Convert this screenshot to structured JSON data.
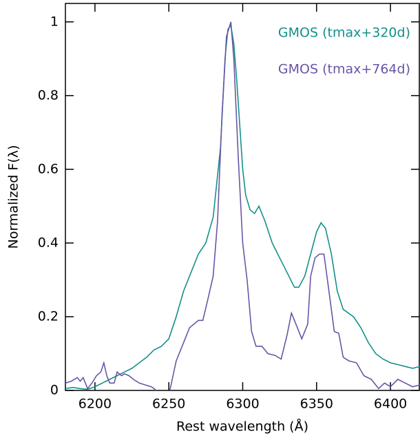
{
  "chart_data": {
    "type": "line",
    "x_label": "Rest wavelength (Å)",
    "y_label": "Normalized F(λ)",
    "xlim": [
      6180,
      6420
    ],
    "xticks": [
      6200,
      6250,
      6300,
      6350,
      6400
    ],
    "ylim": [
      0,
      1.05
    ],
    "yticks": [
      0,
      0.2,
      0.4,
      0.6,
      0.8,
      1
    ],
    "series": [
      {
        "name": "GMOS (tmax+320d)",
        "color": "#12908a",
        "x": [
          6180,
          6185,
          6190,
          6195,
          6200,
          6205,
          6210,
          6215,
          6220,
          6225,
          6230,
          6235,
          6240,
          6245,
          6250,
          6255,
          6260,
          6265,
          6270,
          6275,
          6280,
          6285,
          6288,
          6290,
          6292,
          6294,
          6296,
          6300,
          6302,
          6305,
          6308,
          6311,
          6315,
          6320,
          6325,
          6330,
          6335,
          6338,
          6342,
          6346,
          6350,
          6353,
          6356,
          6360,
          6364,
          6368,
          6375,
          6380,
          6385,
          6390,
          6395,
          6400,
          6405,
          6410,
          6415,
          6420
        ],
        "values": [
          0.005,
          0.008,
          0.005,
          0.003,
          0.01,
          0.02,
          0.03,
          0.04,
          0.05,
          0.06,
          0.075,
          0.09,
          0.11,
          0.12,
          0.14,
          0.2,
          0.27,
          0.32,
          0.37,
          0.4,
          0.47,
          0.66,
          0.9,
          0.98,
          0.99,
          0.94,
          0.84,
          0.6,
          0.53,
          0.49,
          0.48,
          0.5,
          0.46,
          0.4,
          0.36,
          0.32,
          0.28,
          0.28,
          0.31,
          0.37,
          0.43,
          0.455,
          0.44,
          0.37,
          0.27,
          0.22,
          0.2,
          0.17,
          0.13,
          0.1,
          0.085,
          0.075,
          0.07,
          0.065,
          0.06,
          0.065
        ]
      },
      {
        "name": "GMOS (tmax+764d)",
        "color": "#6a55a6",
        "x": [
          6180,
          6184,
          6188,
          6190,
          6192,
          6195,
          6198,
          6201,
          6204,
          6206,
          6208,
          6210,
          6213,
          6215,
          6218,
          6220,
          6223,
          6226,
          6230,
          6234,
          6238,
          6240,
          6244,
          6248,
          6255,
          6260,
          6264,
          6270,
          6273,
          6276,
          6280,
          6283,
          6286,
          6289,
          6292,
          6294,
          6297,
          6300,
          6303,
          6306,
          6309,
          6313,
          6317,
          6322,
          6326,
          6330,
          6333,
          6336,
          6340,
          6344,
          6346,
          6349,
          6352,
          6355,
          6358,
          6362,
          6365,
          6368,
          6372,
          6377,
          6382,
          6387,
          6392,
          6396,
          6400,
          6405,
          6410,
          6415,
          6420
        ],
        "values": [
          0.02,
          0.025,
          0.035,
          0.025,
          0.035,
          0.005,
          0.02,
          0.04,
          0.05,
          0.075,
          0.04,
          0.02,
          0.02,
          0.05,
          0.04,
          0.045,
          0.04,
          0.03,
          0.02,
          0.015,
          0.01,
          0.005,
          -0.01,
          -0.05,
          0.08,
          0.13,
          0.17,
          0.19,
          0.19,
          0.24,
          0.31,
          0.46,
          0.75,
          0.96,
          1.0,
          0.9,
          0.63,
          0.4,
          0.3,
          0.16,
          0.12,
          0.12,
          0.1,
          0.095,
          0.085,
          0.15,
          0.21,
          0.18,
          0.14,
          0.18,
          0.31,
          0.36,
          0.37,
          0.37,
          0.28,
          0.16,
          0.155,
          0.09,
          0.08,
          0.075,
          0.04,
          0.03,
          0.005,
          0.02,
          0.01,
          0.03,
          0.02,
          0.01,
          0.015
        ]
      }
    ]
  }
}
